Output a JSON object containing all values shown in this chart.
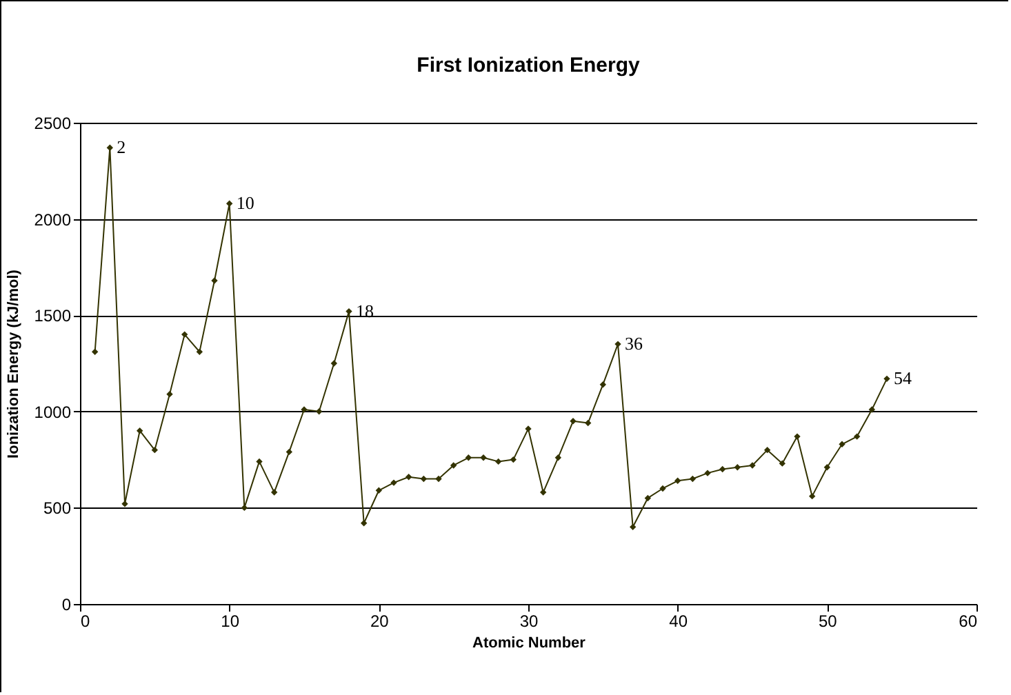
{
  "chart_data": {
    "type": "line",
    "title": "First Ionization Energy",
    "xlabel": "Atomic Number",
    "ylabel": "Ionization Energy (kJ/mol)",
    "x": [
      1,
      2,
      3,
      4,
      5,
      6,
      7,
      8,
      9,
      10,
      11,
      12,
      13,
      14,
      15,
      16,
      17,
      18,
      19,
      20,
      21,
      22,
      23,
      24,
      25,
      26,
      27,
      28,
      29,
      30,
      31,
      32,
      33,
      34,
      35,
      36,
      37,
      38,
      39,
      40,
      41,
      42,
      43,
      44,
      45,
      46,
      47,
      48,
      49,
      50,
      51,
      52,
      53,
      54
    ],
    "series": [
      {
        "color": "#333300",
        "values": [
          1310,
          2370,
          520,
          900,
          800,
          1090,
          1400,
          1310,
          1680,
          2080,
          500,
          740,
          580,
          790,
          1010,
          1000,
          1250,
          1520,
          420,
          590,
          630,
          660,
          650,
          650,
          720,
          760,
          760,
          740,
          750,
          910,
          580,
          760,
          950,
          940,
          1140,
          1350,
          400,
          550,
          600,
          640,
          650,
          680,
          700,
          710,
          720,
          800,
          730,
          870,
          560,
          710,
          830,
          870,
          1010,
          1170
        ]
      }
    ],
    "xlim": [
      0,
      60
    ],
    "xticks": [
      0,
      10,
      20,
      30,
      40,
      50,
      60
    ],
    "ylim": [
      0,
      2500
    ],
    "yticks": [
      0,
      500,
      1000,
      1500,
      2000,
      2500
    ],
    "grid": "y",
    "legend": false,
    "marker": "diamond",
    "line_style": "solid",
    "annotations": [
      {
        "text": "2",
        "x": 2,
        "y": 2370
      },
      {
        "text": "10",
        "x": 10,
        "y": 2080
      },
      {
        "text": "18",
        "x": 18,
        "y": 1520
      },
      {
        "text": "36",
        "x": 36,
        "y": 1350
      },
      {
        "text": "54",
        "x": 54,
        "y": 1170
      }
    ]
  }
}
